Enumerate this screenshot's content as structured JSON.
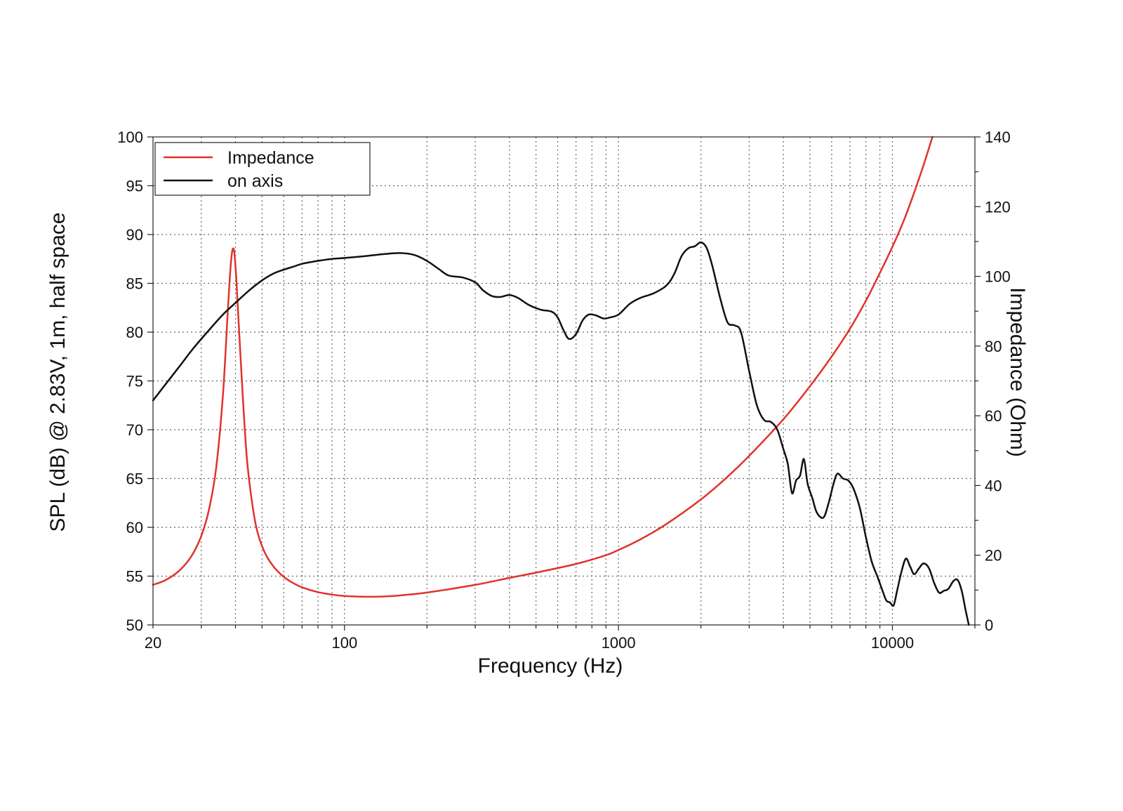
{
  "colors": {
    "impedance": "#e0332b",
    "on_axis": "#111111",
    "grid": "#666666",
    "frame": "#222222"
  },
  "chart_data": {
    "type": "line",
    "xlabel": "Frequency (Hz)",
    "ylabel": "SPL (dB) @ 2.83V, 1m, half space",
    "y2label": "Impedance (Ohm)",
    "x_scale": "log",
    "xlim": [
      20,
      20000
    ],
    "ylim": [
      50,
      100
    ],
    "y2lim": [
      0,
      140
    ],
    "grid": true,
    "legend_position": "top-left",
    "x_ticks": [
      {
        "value": 20,
        "label": "20"
      },
      {
        "value": 100,
        "label": "100"
      },
      {
        "value": 1000,
        "label": "1000"
      },
      {
        "value": 10000,
        "label": "10000"
      }
    ],
    "y_ticks": [
      {
        "value": 50,
        "label": "50"
      },
      {
        "value": 55,
        "label": "55"
      },
      {
        "value": 60,
        "label": "60"
      },
      {
        "value": 65,
        "label": "65"
      },
      {
        "value": 70,
        "label": "70"
      },
      {
        "value": 75,
        "label": "75"
      },
      {
        "value": 80,
        "label": "80"
      },
      {
        "value": 85,
        "label": "85"
      },
      {
        "value": 90,
        "label": "90"
      },
      {
        "value": 95,
        "label": "95"
      },
      {
        "value": 100,
        "label": "100"
      }
    ],
    "y2_ticks": [
      {
        "value": 0,
        "label": "0"
      },
      {
        "value": 20,
        "label": "20"
      },
      {
        "value": 40,
        "label": "40"
      },
      {
        "value": 60,
        "label": "60"
      },
      {
        "value": 80,
        "label": "80"
      },
      {
        "value": 100,
        "label": "100"
      },
      {
        "value": 120,
        "label": "120"
      },
      {
        "value": 140,
        "label": "140"
      }
    ],
    "series": [
      {
        "name": "Impedance",
        "axis": "right",
        "color": "#e0332b",
        "points": [
          [
            20,
            11.5
          ],
          [
            22,
            12.7
          ],
          [
            24,
            14.5
          ],
          [
            26,
            17.0
          ],
          [
            28,
            20.5
          ],
          [
            30,
            25.5
          ],
          [
            32,
            33.0
          ],
          [
            34,
            45.0
          ],
          [
            36,
            66.0
          ],
          [
            37.5,
            90.0
          ],
          [
            38.5,
            104.0
          ],
          [
            39.3,
            108.0
          ],
          [
            40,
            103.0
          ],
          [
            41,
            88.0
          ],
          [
            42.5,
            66.0
          ],
          [
            44,
            48.0
          ],
          [
            46,
            35.0
          ],
          [
            48,
            27.0
          ],
          [
            51,
            21.0
          ],
          [
            55,
            16.8
          ],
          [
            60,
            13.8
          ],
          [
            65,
            12.0
          ],
          [
            70,
            10.8
          ],
          [
            80,
            9.4
          ],
          [
            90,
            8.7
          ],
          [
            100,
            8.3
          ],
          [
            115,
            8.1
          ],
          [
            130,
            8.1
          ],
          [
            150,
            8.3
          ],
          [
            200,
            9.3
          ],
          [
            300,
            11.5
          ],
          [
            400,
            13.5
          ],
          [
            500,
            15.0
          ],
          [
            700,
            17.5
          ],
          [
            900,
            20.0
          ],
          [
            1000,
            21.5
          ],
          [
            1200,
            24.5
          ],
          [
            1500,
            29.0
          ],
          [
            2000,
            36.0
          ],
          [
            2500,
            42.5
          ],
          [
            3000,
            48.5
          ],
          [
            4000,
            59.0
          ],
          [
            5000,
            68.5
          ],
          [
            6000,
            77.0
          ],
          [
            7000,
            85.0
          ],
          [
            8000,
            93.0
          ],
          [
            9000,
            101.0
          ],
          [
            10000,
            108.5
          ],
          [
            11000,
            116.0
          ],
          [
            12000,
            124.0
          ],
          [
            13000,
            132.0
          ],
          [
            14000,
            140.0
          ]
        ]
      },
      {
        "name": "on axis",
        "axis": "left",
        "color": "#111111",
        "points": [
          [
            20,
            73.0
          ],
          [
            22,
            74.5
          ],
          [
            25,
            76.5
          ],
          [
            28,
            78.3
          ],
          [
            32,
            80.2
          ],
          [
            36,
            81.8
          ],
          [
            40,
            83.0
          ],
          [
            45,
            84.3
          ],
          [
            50,
            85.3
          ],
          [
            55,
            86.0
          ],
          [
            60,
            86.4
          ],
          [
            65,
            86.7
          ],
          [
            70,
            87.0
          ],
          [
            80,
            87.3
          ],
          [
            90,
            87.5
          ],
          [
            100,
            87.6
          ],
          [
            120,
            87.8
          ],
          [
            140,
            88.0
          ],
          [
            160,
            88.1
          ],
          [
            180,
            87.9
          ],
          [
            200,
            87.3
          ],
          [
            220,
            86.5
          ],
          [
            240,
            85.8
          ],
          [
            270,
            85.6
          ],
          [
            300,
            85.1
          ],
          [
            320,
            84.3
          ],
          [
            345,
            83.7
          ],
          [
            370,
            83.6
          ],
          [
            400,
            83.8
          ],
          [
            430,
            83.5
          ],
          [
            470,
            82.8
          ],
          [
            520,
            82.3
          ],
          [
            570,
            82.1
          ],
          [
            600,
            81.5
          ],
          [
            630,
            80.2
          ],
          [
            660,
            79.3
          ],
          [
            700,
            79.8
          ],
          [
            740,
            81.2
          ],
          [
            780,
            81.8
          ],
          [
            830,
            81.7
          ],
          [
            880,
            81.4
          ],
          [
            930,
            81.5
          ],
          [
            1000,
            81.8
          ],
          [
            1100,
            82.9
          ],
          [
            1200,
            83.5
          ],
          [
            1350,
            84.0
          ],
          [
            1500,
            84.8
          ],
          [
            1600,
            86.0
          ],
          [
            1700,
            87.8
          ],
          [
            1800,
            88.6
          ],
          [
            1900,
            88.8
          ],
          [
            2000,
            89.2
          ],
          [
            2100,
            88.6
          ],
          [
            2200,
            86.8
          ],
          [
            2350,
            83.5
          ],
          [
            2500,
            81.0
          ],
          [
            2650,
            80.7
          ],
          [
            2800,
            80.0
          ],
          [
            3000,
            76.0
          ],
          [
            3200,
            72.5
          ],
          [
            3400,
            71.0
          ],
          [
            3600,
            70.8
          ],
          [
            3800,
            70.0
          ],
          [
            4000,
            68.0
          ],
          [
            4150,
            66.5
          ],
          [
            4300,
            63.5
          ],
          [
            4450,
            64.8
          ],
          [
            4600,
            65.3
          ],
          [
            4750,
            67.0
          ],
          [
            4900,
            64.5
          ],
          [
            5100,
            63.0
          ],
          [
            5300,
            61.5
          ],
          [
            5600,
            61.0
          ],
          [
            5850,
            62.5
          ],
          [
            6100,
            64.5
          ],
          [
            6300,
            65.5
          ],
          [
            6600,
            65.0
          ],
          [
            6900,
            64.8
          ],
          [
            7200,
            64.0
          ],
          [
            7600,
            62.0
          ],
          [
            8000,
            59.0
          ],
          [
            8400,
            56.5
          ],
          [
            8800,
            55.0
          ],
          [
            9200,
            53.5
          ],
          [
            9500,
            52.5
          ],
          [
            9800,
            52.3
          ],
          [
            10100,
            52.0
          ],
          [
            10400,
            53.5
          ],
          [
            10800,
            55.5
          ],
          [
            11200,
            56.8
          ],
          [
            11600,
            56.0
          ],
          [
            12000,
            55.2
          ],
          [
            12500,
            55.8
          ],
          [
            13000,
            56.3
          ],
          [
            13600,
            55.8
          ],
          [
            14200,
            54.3
          ],
          [
            14800,
            53.3
          ],
          [
            15400,
            53.5
          ],
          [
            16000,
            53.7
          ],
          [
            16700,
            54.5
          ],
          [
            17300,
            54.6
          ],
          [
            17900,
            53.5
          ],
          [
            18500,
            51.5
          ],
          [
            19000,
            50.0
          ]
        ]
      }
    ]
  }
}
